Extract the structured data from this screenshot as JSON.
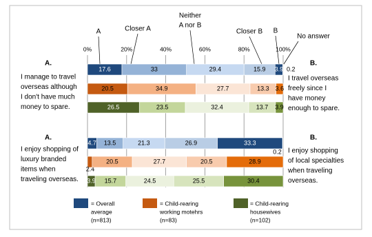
{
  "chart_data": {
    "type": "stacked-bar-horizontal",
    "segments": [
      "A",
      "Closer A",
      [
        "Neither",
        "A nor B"
      ],
      "Closer B",
      "B",
      "No answer"
    ],
    "xlim": [
      0,
      100
    ],
    "xticks": [
      {
        "value": 0,
        "label": "0%"
      },
      {
        "value": 20,
        "label": "20%"
      },
      {
        "value": 40,
        "label": "40%"
      },
      {
        "value": 60,
        "label": "60%"
      },
      {
        "value": 80,
        "label": "80%"
      },
      {
        "value": 100,
        "label": "100%"
      }
    ],
    "grid": true,
    "series": [
      {
        "name": [
          "= Overall",
          "average",
          "(n=813)"
        ],
        "color": "#1f497d",
        "segment_colors": [
          "#1f497d",
          "#95b3d7",
          "#c6d9f1",
          "#b9cde5",
          "#1f497d",
          "#1f497d"
        ]
      },
      {
        "name": [
          "= Child-rearing",
          "working motehrs",
          "(n=83)"
        ],
        "color": "#c55a11",
        "segment_colors": [
          "#c55a11",
          "#f4b183",
          "#fbe5d6",
          "#f8cbad",
          "#e46c0a",
          "#c55a11"
        ]
      },
      {
        "name": [
          "= Child-rearing",
          "housewives",
          "(n=102)"
        ],
        "color": "#4f6228",
        "segment_colors": [
          "#4f6228",
          "#c3d69b",
          "#ebf1de",
          "#d7e4bd",
          "#77933c",
          "#4f6228"
        ]
      }
    ],
    "questions": [
      {
        "a_label": "A.",
        "a_text": [
          "I manage to travel",
          "overseas although",
          "I don't have much",
          "money to spare."
        ],
        "b_label": "B.",
        "b_text": [
          "I travel overseas",
          "freely since I",
          "have money",
          "enough to spare."
        ],
        "values": [
          [
            17.6,
            33,
            29.4,
            15.9,
            3.9,
            0.2
          ],
          [
            20.5,
            34.9,
            27.7,
            13.3,
            3.6,
            null
          ],
          [
            26.5,
            23.5,
            32.4,
            13.7,
            3.9,
            null
          ]
        ]
      },
      {
        "a_label": "A.",
        "a_text": [
          "I enjoy shopping of",
          "luxury branded",
          "items when",
          "traveling overseas."
        ],
        "b_label": "B.",
        "b_text": [
          "I enjoy shopping",
          "of local specialties",
          "when traveling",
          "overseas."
        ],
        "values": [
          [
            4.7,
            13.5,
            21.3,
            26.9,
            33.3,
            0.2
          ],
          [
            2.4,
            20.5,
            27.7,
            20.5,
            28.9,
            null
          ],
          [
            3.9,
            15.7,
            24.5,
            25.5,
            30.4,
            null
          ]
        ]
      }
    ]
  }
}
